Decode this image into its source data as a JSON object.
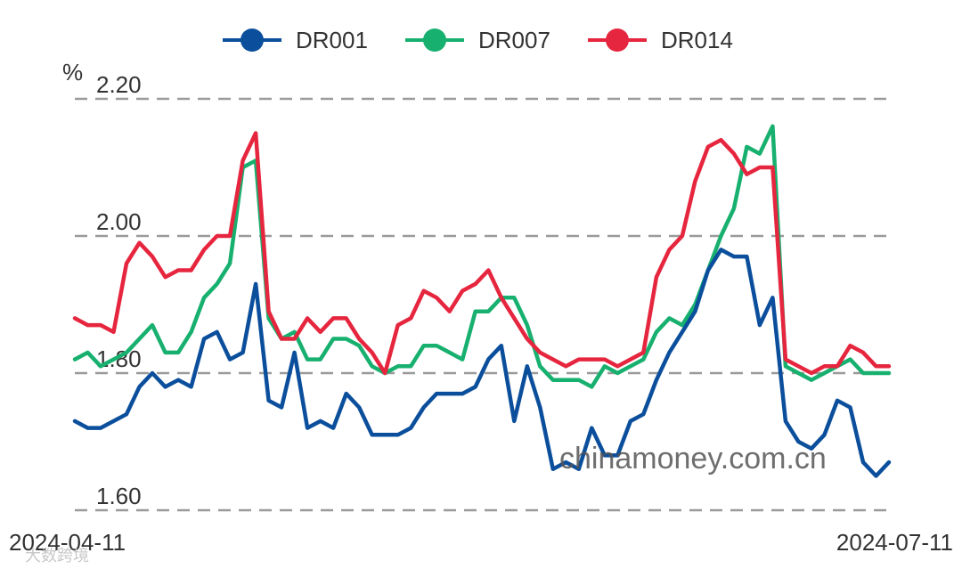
{
  "chart_data": {
    "type": "line",
    "unit": "%",
    "ylim": [
      1.58,
      2.2
    ],
    "yticks": [
      "1.60",
      "1.80",
      "2.00",
      "2.20"
    ],
    "x_start_label": "2024-04-11",
    "x_end_label": "2024-07-11",
    "grid": "horizontal dashed",
    "legend_position": "top-center",
    "watermark": "chinamoney.com.cn",
    "credit": "大数跨境",
    "series": [
      {
        "name": "DR001",
        "color": "#0b4f9c",
        "values": [
          1.73,
          1.72,
          1.72,
          1.73,
          1.74,
          1.78,
          1.8,
          1.78,
          1.79,
          1.78,
          1.85,
          1.86,
          1.82,
          1.83,
          1.93,
          1.76,
          1.75,
          1.83,
          1.72,
          1.73,
          1.72,
          1.77,
          1.75,
          1.71,
          1.71,
          1.71,
          1.72,
          1.75,
          1.77,
          1.77,
          1.77,
          1.78,
          1.82,
          1.84,
          1.73,
          1.81,
          1.75,
          1.66,
          1.67,
          1.66,
          1.72,
          1.68,
          1.68,
          1.73,
          1.74,
          1.79,
          1.83,
          1.86,
          1.89,
          1.95,
          1.98,
          1.97,
          1.97,
          1.87,
          1.91,
          1.73,
          1.7,
          1.69,
          1.71,
          1.76,
          1.75,
          1.67,
          1.65,
          1.67
        ]
      },
      {
        "name": "DR007",
        "color": "#17b06f",
        "values": [
          1.82,
          1.83,
          1.81,
          1.82,
          1.83,
          1.85,
          1.87,
          1.83,
          1.83,
          1.86,
          1.91,
          1.93,
          1.96,
          2.1,
          2.11,
          1.88,
          1.85,
          1.86,
          1.82,
          1.82,
          1.85,
          1.85,
          1.84,
          1.81,
          1.8,
          1.81,
          1.81,
          1.84,
          1.84,
          1.83,
          1.82,
          1.89,
          1.89,
          1.91,
          1.91,
          1.87,
          1.81,
          1.79,
          1.79,
          1.79,
          1.78,
          1.81,
          1.8,
          1.81,
          1.82,
          1.86,
          1.88,
          1.87,
          1.9,
          1.95,
          2.0,
          2.04,
          2.13,
          2.12,
          2.16,
          1.81,
          1.8,
          1.79,
          1.8,
          1.81,
          1.82,
          1.8,
          1.8,
          1.8
        ]
      },
      {
        "name": "DR014",
        "color": "#e6263e",
        "values": [
          1.88,
          1.87,
          1.87,
          1.86,
          1.96,
          1.99,
          1.97,
          1.94,
          1.95,
          1.95,
          1.98,
          2.0,
          2.0,
          2.11,
          2.15,
          1.89,
          1.85,
          1.85,
          1.88,
          1.86,
          1.88,
          1.88,
          1.85,
          1.83,
          1.8,
          1.87,
          1.88,
          1.92,
          1.91,
          1.89,
          1.92,
          1.93,
          1.95,
          1.91,
          1.88,
          1.85,
          1.83,
          1.82,
          1.81,
          1.82,
          1.82,
          1.82,
          1.81,
          1.82,
          1.83,
          1.94,
          1.98,
          2.0,
          2.08,
          2.13,
          2.14,
          2.12,
          2.09,
          2.1,
          2.1,
          1.82,
          1.81,
          1.8,
          1.81,
          1.81,
          1.84,
          1.83,
          1.81,
          1.81
        ]
      }
    ]
  }
}
